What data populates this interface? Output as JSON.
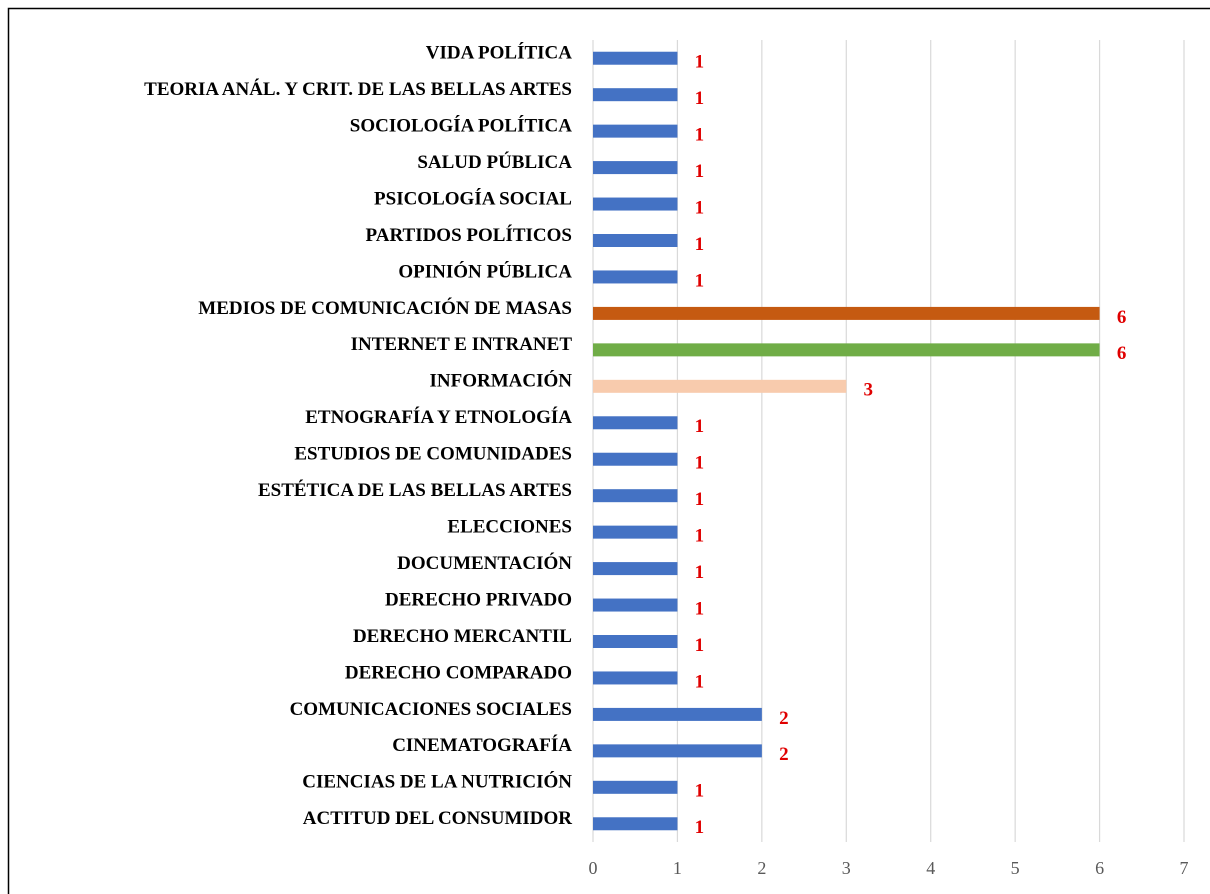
{
  "chart_data": {
    "type": "bar",
    "orientation": "horizontal",
    "categories": [
      "ACTITUD DEL CONSUMIDOR",
      "CIENCIAS DE LA NUTRICIÓN",
      "CINEMATOGRAFÍA",
      "COMUNICACIONES SOCIALES",
      "DERECHO COMPARADO",
      "DERECHO MERCANTIL",
      "DERECHO PRIVADO",
      "DOCUMENTACIÓN",
      "ELECCIONES",
      "ESTÉTICA DE LAS BELLAS ARTES",
      "ESTUDIOS DE COMUNIDADES",
      "ETNOGRAFÍA Y ETNOLOGÍA",
      "INFORMACIÓN",
      "INTERNET E INTRANET",
      "MEDIOS DE COMUNICACIÓN DE MASAS",
      "OPINIÓN PÚBLICA",
      "PARTIDOS POLÍTICOS",
      "PSICOLOGÍA SOCIAL",
      "SALUD PÚBLICA",
      "SOCIOLOGÍA POLÍTICA",
      "TEORIA ANÁL. Y CRIT. DE LAS BELLAS ARTES",
      "VIDA POLÍTICA"
    ],
    "values": [
      1,
      1,
      2,
      2,
      1,
      1,
      1,
      1,
      1,
      1,
      1,
      1,
      3,
      6,
      6,
      1,
      1,
      1,
      1,
      1,
      1,
      1
    ],
    "colors": [
      "#4472c4",
      "#4472c4",
      "#4472c4",
      "#4472c4",
      "#4472c4",
      "#4472c4",
      "#4472c4",
      "#4472c4",
      "#4472c4",
      "#4472c4",
      "#4472c4",
      "#4472c4",
      "#f8cbad",
      "#70ad47",
      "#c55a11",
      "#4472c4",
      "#4472c4",
      "#4472c4",
      "#4472c4",
      "#4472c4",
      "#4472c4",
      "#4472c4"
    ],
    "xlim": [
      0,
      7
    ],
    "xticks": [
      0,
      1,
      2,
      3,
      4,
      5,
      6,
      7
    ],
    "grid": true
  }
}
